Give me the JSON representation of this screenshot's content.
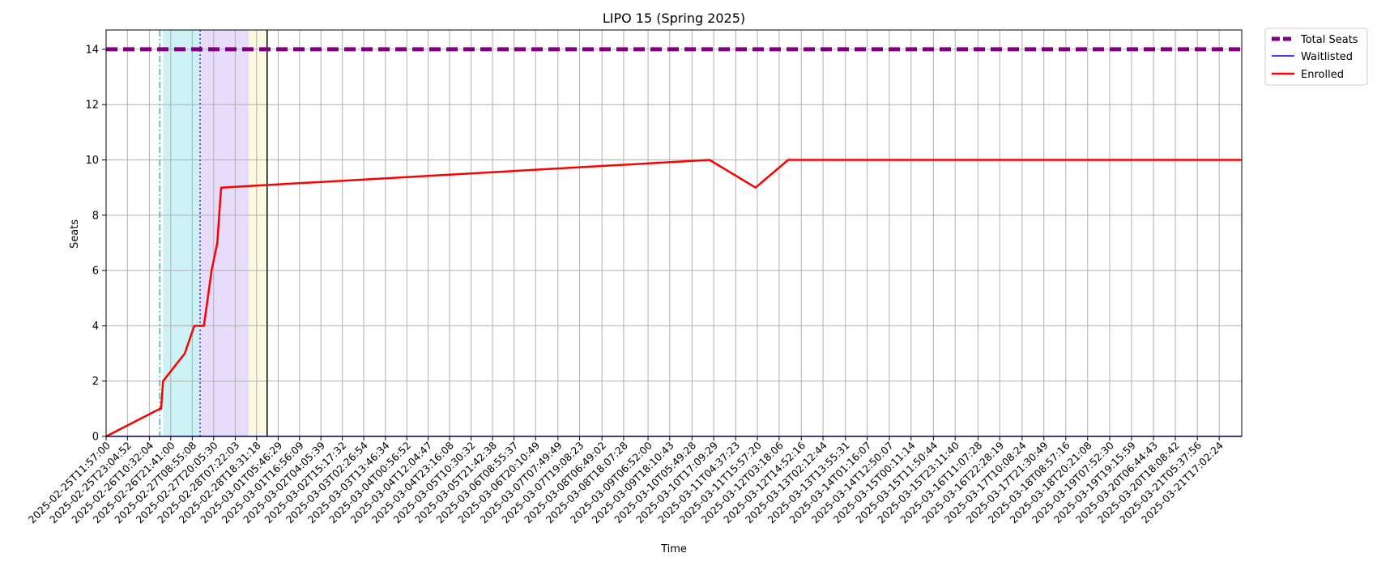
{
  "chart_data": {
    "type": "line",
    "title": "LIPO 15 (Spring 2025)",
    "xlabel": "Time",
    "ylabel": "Seats",
    "ylim": [
      0,
      14.7
    ],
    "yticks": [
      0,
      2,
      4,
      6,
      8,
      10,
      12,
      14
    ],
    "grid": true,
    "legend_position": "outside-top-right",
    "x_range": [
      "2025-02-25T11:57:00",
      "2025-03-22T04:48:00"
    ],
    "xticks": [
      "2025-02-25T11:57:00",
      "2025-02-25T23:04:52",
      "2025-02-26T10:32:04",
      "2025-02-26T21:41:00",
      "2025-02-27T08:55:08",
      "2025-02-27T20:05:30",
      "2025-02-28T07:22:03",
      "2025-02-28T18:31:18",
      "2025-03-01T05:46:29",
      "2025-03-01T16:56:09",
      "2025-03-02T04:05:39",
      "2025-03-02T15:17:32",
      "2025-03-03T02:26:54",
      "2025-03-03T13:46:34",
      "2025-03-04T00:56:52",
      "2025-03-04T12:04:47",
      "2025-03-04T23:16:08",
      "2025-03-05T10:30:32",
      "2025-03-05T21:42:38",
      "2025-03-06T08:55:37",
      "2025-03-06T20:10:49",
      "2025-03-07T07:49:49",
      "2025-03-07T19:08:23",
      "2025-03-08T06:49:02",
      "2025-03-08T18:07:28",
      "2025-03-09T06:52:00",
      "2025-03-09T18:10:43",
      "2025-03-10T05:49:28",
      "2025-03-10T17:09:29",
      "2025-03-11T04:37:23",
      "2025-03-11T15:57:20",
      "2025-03-12T03:18:06",
      "2025-03-12T14:52:16",
      "2025-03-13T02:12:44",
      "2025-03-13T13:55:31",
      "2025-03-14T01:16:07",
      "2025-03-14T12:50:07",
      "2025-03-15T00:11:14",
      "2025-03-15T11:50:44",
      "2025-03-15T23:11:40",
      "2025-03-16T11:07:28",
      "2025-03-16T22:28:19",
      "2025-03-17T10:08:24",
      "2025-03-17T21:30:49",
      "2025-03-18T08:57:16",
      "2025-03-18T20:21:08",
      "2025-03-19T07:52:30",
      "2025-03-19T19:15:59",
      "2025-03-20T06:44:43",
      "2025-03-20T18:08:42",
      "2025-03-21T05:37:56",
      "2025-03-21T17:02:24"
    ],
    "series": [
      {
        "name": "Total Seats",
        "color": "#800080",
        "style": "dashed",
        "x": [
          "2025-02-25T11:57:00",
          "2025-03-22T04:48:00"
        ],
        "y": [
          14,
          14
        ]
      },
      {
        "name": "Waitlisted",
        "color": "#0000ff",
        "style": "solid",
        "x": [
          "2025-02-25T11:57:00",
          "2025-03-22T04:48:00"
        ],
        "y": [
          0,
          0
        ]
      },
      {
        "name": "Enrolled",
        "color": "#ff0000",
        "style": "solid",
        "x": [
          "2025-02-25T11:57:00",
          "2025-02-26T16:00:00",
          "2025-02-26T16:40:00",
          "2025-02-26T17:40:00",
          "2025-02-27T05:00:00",
          "2025-02-27T10:00:00",
          "2025-02-27T15:00:00",
          "2025-02-27T17:00:00",
          "2025-02-27T19:00:00",
          "2025-02-27T22:00:00",
          "2025-02-27T23:00:00",
          "2025-02-28T00:00:00",
          "2025-03-10T15:00:00",
          "2025-03-11T15:00:00",
          "2025-03-12T08:00:00",
          "2025-03-22T04:48:00"
        ],
        "y": [
          0,
          1,
          1,
          2,
          3,
          4,
          4,
          5,
          6,
          7,
          8,
          9,
          10,
          9,
          10,
          10
        ]
      }
    ],
    "shaded_regions": [
      {
        "start": "2025-02-26T17:40:00",
        "end": "2025-02-27T13:00:00",
        "color": "#7fdfe6"
      },
      {
        "start": "2025-02-27T13:00:00",
        "end": "2025-02-28T14:20:00",
        "color": "#c4a8ef"
      },
      {
        "start": "2025-02-28T14:20:00",
        "end": "2025-03-01T00:00:00",
        "color": "#f4f0b0"
      }
    ],
    "vertical_lines": [
      {
        "x": "2025-02-26T16:00:00",
        "color": "#17becf",
        "style": "dashdot"
      },
      {
        "x": "2025-02-27T13:00:00",
        "color": "#5a19c8",
        "style": "dotted"
      },
      {
        "x": "2025-03-01T00:00:00",
        "color": "#000000",
        "style": "solid"
      }
    ]
  }
}
